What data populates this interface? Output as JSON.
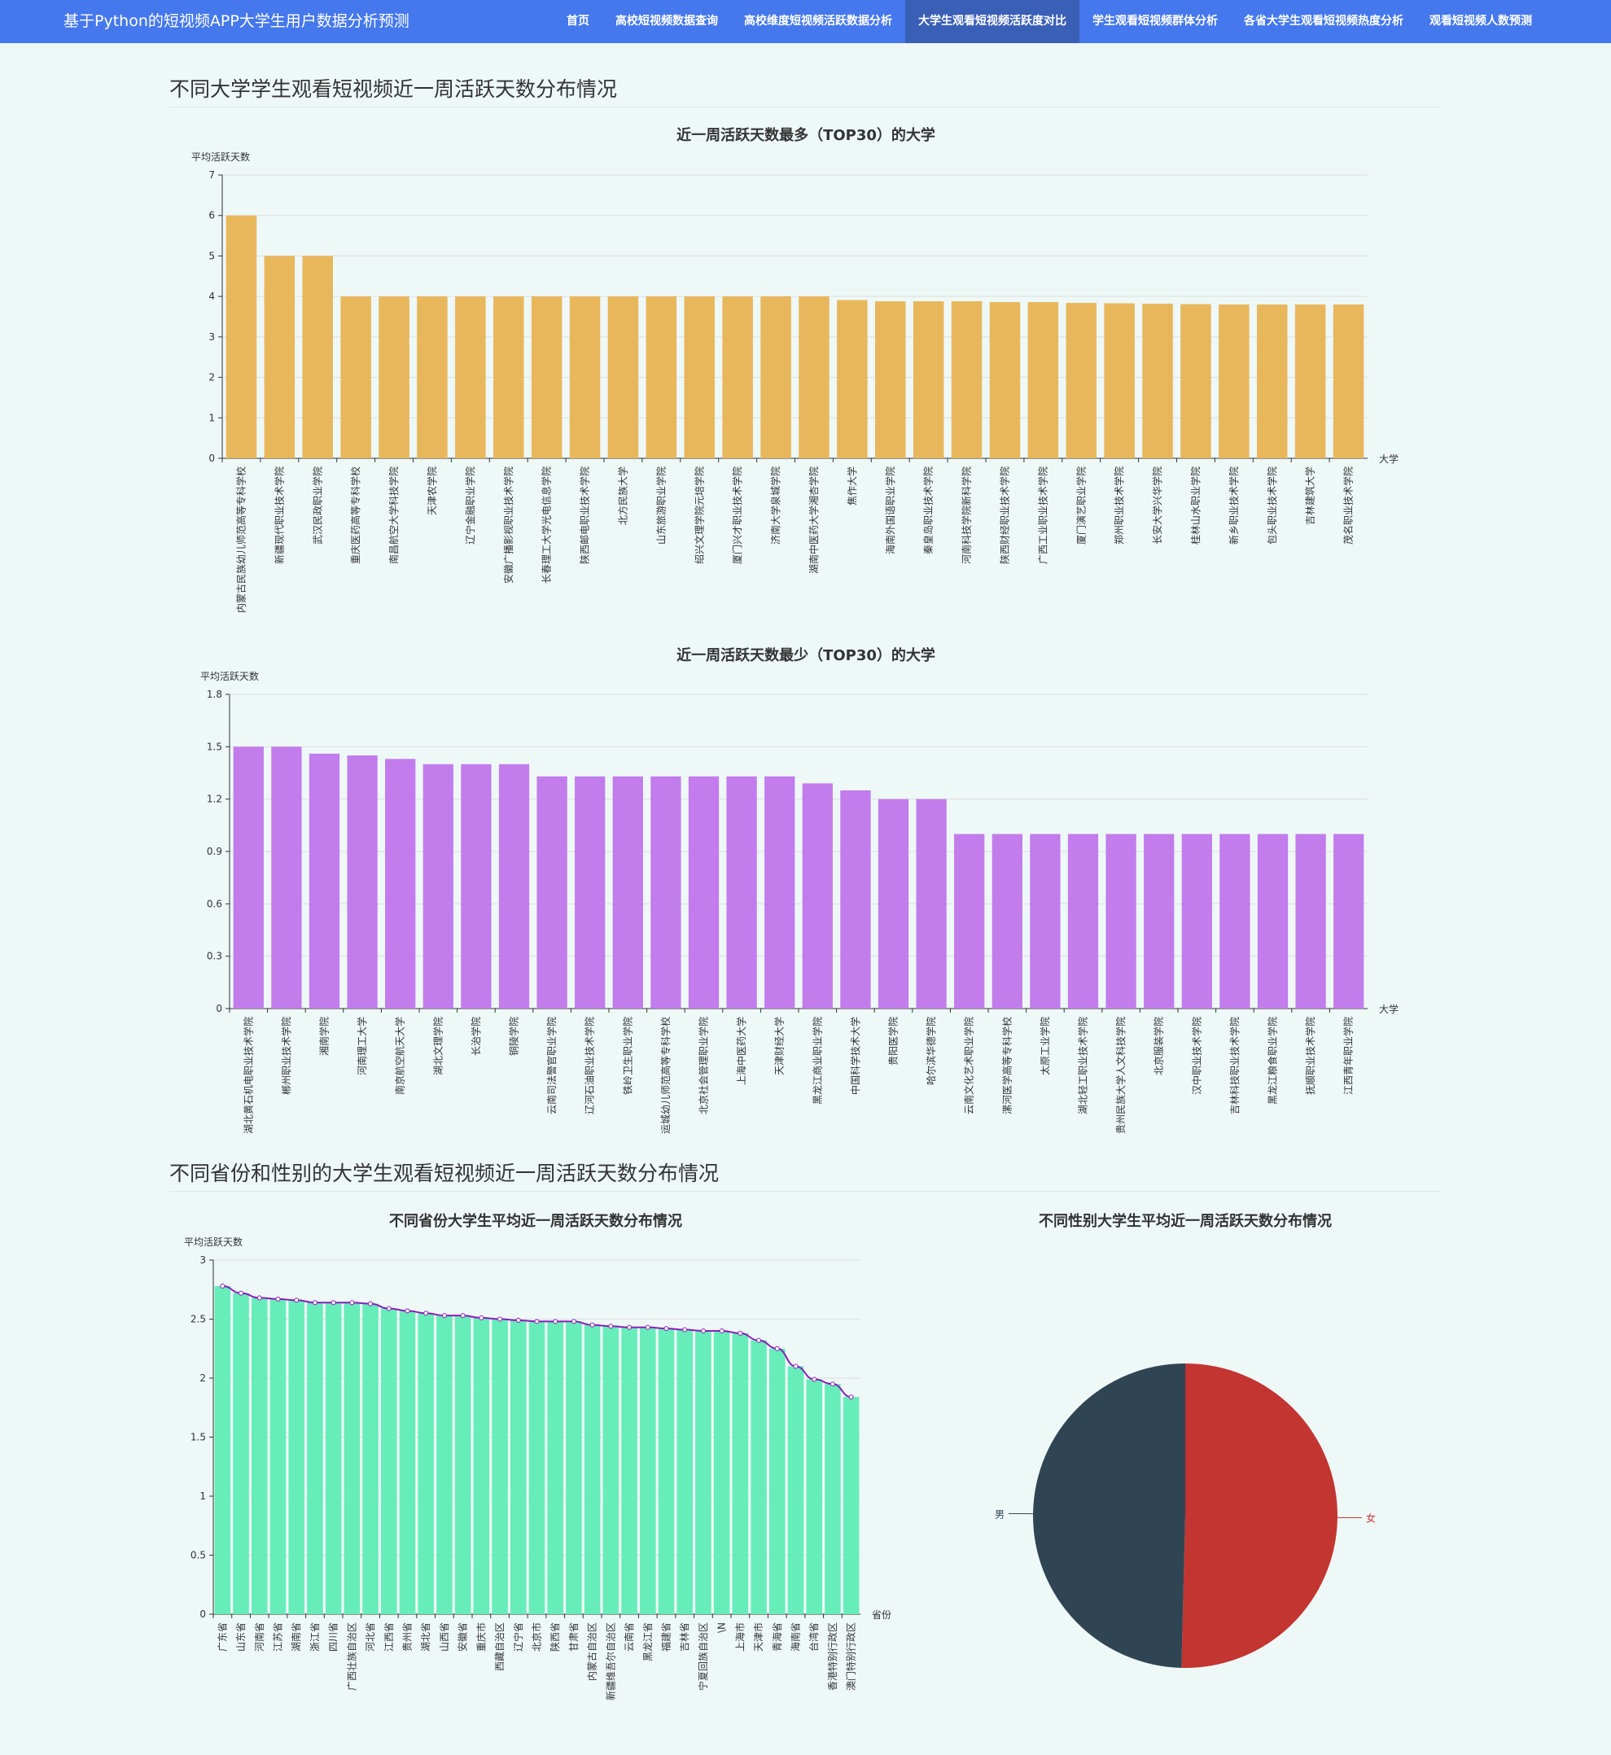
{
  "app": {
    "title": "基于Python的短视频APP大学生用户数据分析预测",
    "nav": [
      "首页",
      "高校短视频数据查询",
      "高校维度短视频活跃数据分析",
      "大学生观看短视频活跃度对比",
      "学生观看短视频群体分析",
      "各省大学生观看短视频热度分析",
      "观看短视频人数预测"
    ],
    "active_nav": 3
  },
  "section1": {
    "title": "不同大学学生观看短视频近一周活跃天数分布情况"
  },
  "section2": {
    "title": "不同省份和性别的大学生观看短视频近一周活跃天数分布情况"
  },
  "colors": {
    "top": "#e8b75c",
    "bottom": "#c27cec",
    "province": "#66edba",
    "line": "#8a1db8",
    "male": "#2f4554",
    "female": "#c23531",
    "axis": "#333333",
    "grid": "#dddddd"
  },
  "chart_data": [
    {
      "type": "bar",
      "title": "近一周活跃天数最多（TOP30）的大学",
      "ylabel": "平均活跃天数",
      "xlabel": "大学",
      "ylim": [
        0,
        7
      ],
      "yticks": [
        "0",
        "1",
        "2",
        "3",
        "4",
        "5",
        "6",
        "7"
      ],
      "categories": [
        "内蒙古民族幼儿师范高等专科学校",
        "新疆现代职业技术学院",
        "武汉民政职业学院",
        "重庆医药高等专科学校",
        "南昌航空大学科技学院",
        "天津农学院",
        "辽宁金融职业学院",
        "安徽广播影视职业技术学院",
        "长春理工大学光电信息学院",
        "陕西邮电职业技术学院",
        "北方民族大学",
        "山东旅游职业学院",
        "绍兴文理学院元培学院",
        "厦门兴才职业技术学院",
        "济南大学泉城学院",
        "湖南中医药大学湘杏学院",
        "焦作大学",
        "海南外国语职业学院",
        "秦皇岛职业技术学院",
        "河南科技学院新科学院",
        "陕西财经职业技术学院",
        "广西工业职业技术学院",
        "厦门演艺职业学院",
        "郑州职业技术学院",
        "长安大学兴华学院",
        "桂林山水职业学院",
        "新乡职业技术学院",
        "包头职业技术学院",
        "吉林建筑大学",
        "茂名职业技术学院"
      ],
      "values": [
        6,
        5,
        5,
        4,
        4,
        4,
        4,
        4,
        4,
        4,
        4,
        4,
        4,
        4,
        4,
        4,
        3.91,
        3.88,
        3.88,
        3.88,
        3.86,
        3.86,
        3.84,
        3.83,
        3.82,
        3.81,
        3.8,
        3.8,
        3.8,
        3.8
      ]
    },
    {
      "type": "bar",
      "title": "近一周活跃天数最少（TOP30）的大学",
      "ylabel": "平均活跃天数",
      "xlabel": "大学",
      "ylim": [
        0,
        1.8
      ],
      "yticks": [
        "0",
        "0.3",
        "0.6",
        "0.9",
        "1.2",
        "1.5",
        "1.8"
      ],
      "categories": [
        "湖北黄石机电职业技术学院",
        "郴州职业技术学院",
        "湘南学院",
        "河南理工大学",
        "南京航空航天大学",
        "湖北文理学院",
        "长治学院",
        "铜陵学院",
        "云南司法警官职业学院",
        "辽河石油职业技术学院",
        "铁岭卫生职业学院",
        "运城幼儿师范高等专科学校",
        "北京社会管理职业学院",
        "上海中医药大学",
        "天津财经大学",
        "黑龙江商业职业学院",
        "中国科学技术大学",
        "贵阳医学院",
        "哈尔滨华德学院",
        "云南文化艺术职业学院",
        "漯河医学高等专科学校",
        "太原工业学院",
        "湖北轻工职业技术学院",
        "贵州民族大学人文科技学院",
        "北京服装学院",
        "汉中职业技术学院",
        "吉林科技职业技术学院",
        "黑龙江粮食职业学院",
        "抚顺职业技术学院",
        "江西青年职业学院"
      ],
      "values": [
        1.5,
        1.5,
        1.46,
        1.45,
        1.43,
        1.4,
        1.4,
        1.4,
        1.33,
        1.33,
        1.33,
        1.33,
        1.33,
        1.33,
        1.33,
        1.29,
        1.25,
        1.2,
        1.2,
        1,
        1,
        1,
        1,
        1,
        1,
        1,
        1,
        1,
        1,
        1
      ]
    },
    {
      "type": "bar",
      "title": "不同省份大学生平均近一周活跃天数分布情况",
      "ylabel": "平均活跃天数",
      "xlabel": "省份",
      "ylim": [
        0,
        3
      ],
      "yticks": [
        "0",
        "0.5",
        "1",
        "1.5",
        "2",
        "2.5",
        "3"
      ],
      "categories": [
        "广东省",
        "山东省",
        "河南省",
        "江苏省",
        "湖南省",
        "浙江省",
        "四川省",
        "广西壮族自治区",
        "河北省",
        "江西省",
        "贵州省",
        "湖北省",
        "山西省",
        "安徽省",
        "重庆市",
        "西藏自治区",
        "辽宁省",
        "北京市",
        "陕西省",
        "甘肃省",
        "内蒙古自治区",
        "新疆维吾尔自治区",
        "云南省",
        "黑龙江省",
        "福建省",
        "吉林省",
        "宁夏回族自治区",
        "\\N",
        "上海市",
        "天津市",
        "青海省",
        "海南省",
        "台湾省",
        "香港特别行政区",
        "澳门特别行政区"
      ],
      "values": [
        2.78,
        2.72,
        2.68,
        2.67,
        2.66,
        2.64,
        2.64,
        2.64,
        2.63,
        2.59,
        2.57,
        2.55,
        2.53,
        2.53,
        2.51,
        2.5,
        2.49,
        2.48,
        2.48,
        2.48,
        2.45,
        2.44,
        2.43,
        2.43,
        2.42,
        2.41,
        2.4,
        2.4,
        2.38,
        2.32,
        2.25,
        2.1,
        1.99,
        1.95,
        1.84
      ]
    },
    {
      "type": "pie",
      "title": "不同性别大学生平均近一周活跃天数分布情况",
      "labels": [
        "女",
        "男"
      ],
      "values": [
        2.53,
        2.49
      ]
    }
  ]
}
